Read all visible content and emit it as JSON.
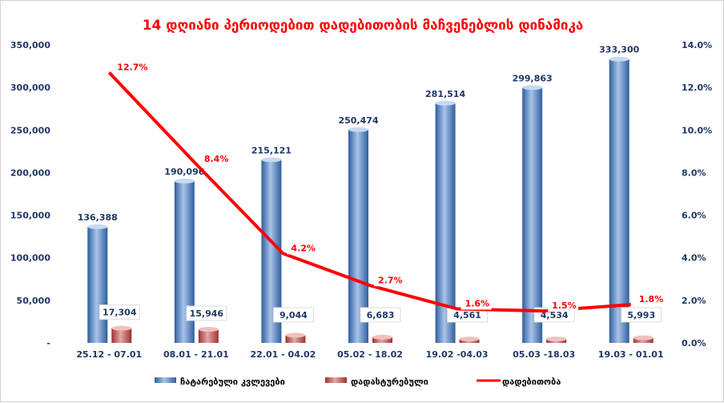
{
  "chart_data": {
    "type": "bar+line",
    "title": "14 დღიანი პერიოდებით დადებითობის მაჩვენებლის დინამიკა",
    "categories": [
      "25.12 - 07.01",
      "08.01 - 21.01",
      "22.01 - 04.02",
      "05.02 - 18.02",
      "19.02 -04.03",
      "05.03 -18.03",
      "19.03 - 01.01"
    ],
    "series": [
      {
        "name": "ჩატარებული კვლევები",
        "type": "bar",
        "axis": "left",
        "color": "#4f81bd",
        "values": [
          136388,
          190096,
          215121,
          250474,
          281514,
          299863,
          333300
        ],
        "labels": [
          "136,388",
          "190,096",
          "215,121",
          "250,474",
          "281,514",
          "299,863",
          "333,300"
        ]
      },
      {
        "name": "დადასტურებული",
        "type": "bar",
        "axis": "left",
        "color": "#c0504d",
        "values": [
          17304,
          15946,
          9044,
          6683,
          4561,
          4534,
          5993
        ],
        "labels": [
          "17,304",
          "15,946",
          "9,044",
          "6,683",
          "4,561",
          "4,534",
          "5,993"
        ]
      },
      {
        "name": "დადებითობა",
        "type": "line",
        "axis": "right",
        "color": "#ff0000",
        "values": [
          12.7,
          8.4,
          4.2,
          2.7,
          1.6,
          1.5,
          1.8
        ],
        "labels": [
          "12.7%",
          "8.4%",
          "4.2%",
          "2.7%",
          "1.6%",
          "1.5%",
          "1.8%"
        ]
      }
    ],
    "left_axis": {
      "ylim": [
        0,
        350000
      ],
      "ticks": [
        "-",
        "50,000",
        "100,000",
        "150,000",
        "200,000",
        "250,000",
        "300,000",
        "350,000"
      ]
    },
    "right_axis": {
      "ylim": [
        0,
        14
      ],
      "ticks": [
        "0.0%",
        "2.0%",
        "4.0%",
        "6.0%",
        "8.0%",
        "10.0%",
        "12.0%",
        "14.0%"
      ]
    },
    "grid": false,
    "legend": "bottom"
  }
}
